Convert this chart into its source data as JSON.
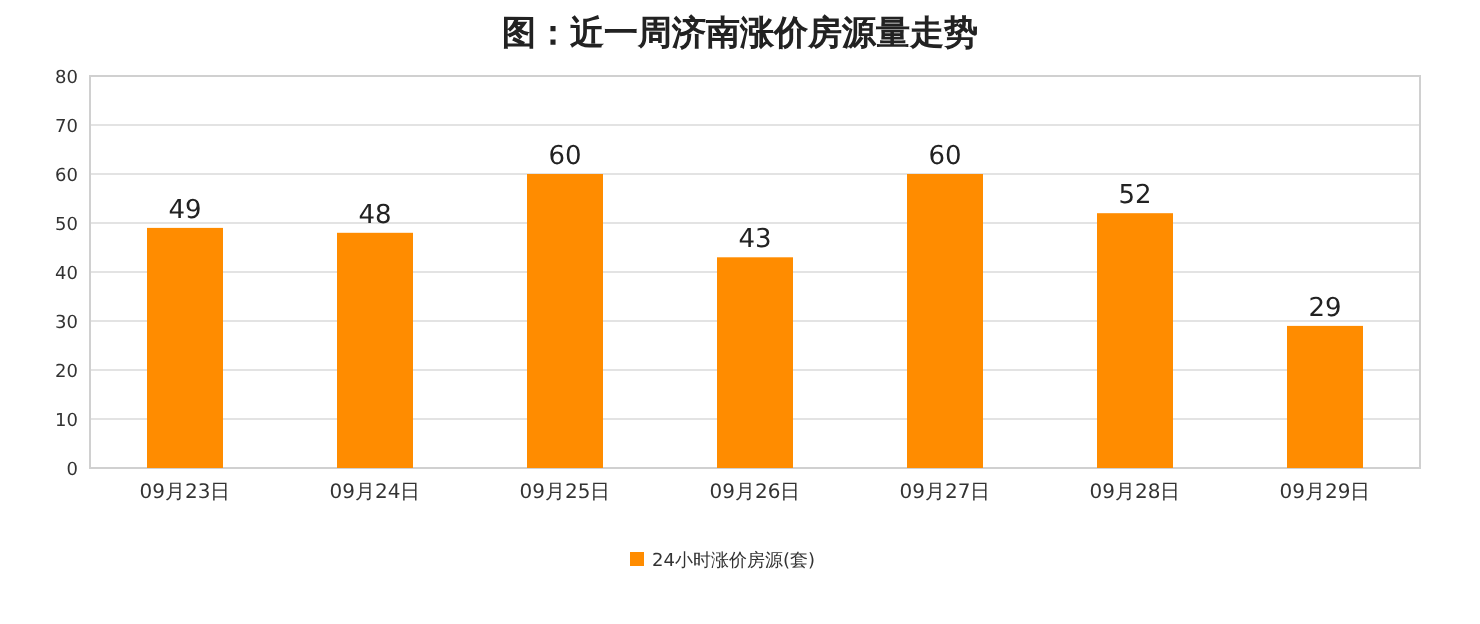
{
  "chart_data": {
    "type": "bar",
    "title": "图：近一周济南涨价房源量走势",
    "categories": [
      "09月23日",
      "09月24日",
      "09月25日",
      "09月26日",
      "09月27日",
      "09月28日",
      "09月29日"
    ],
    "series": [
      {
        "name": "24小时涨价房源(套)",
        "color": "#ff8c00",
        "values": [
          49,
          48,
          60,
          43,
          60,
          52,
          29
        ]
      }
    ],
    "ylim": [
      0,
      80
    ],
    "yticks": [
      0,
      10,
      20,
      30,
      40,
      50,
      60,
      70,
      80
    ],
    "grid": "y",
    "legend": "bottom",
    "data_labels": true
  }
}
